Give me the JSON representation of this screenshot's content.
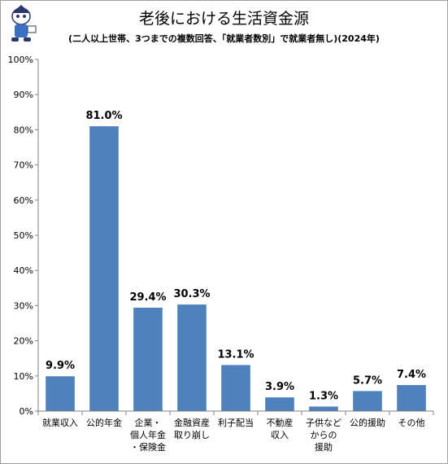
{
  "chart_data": {
    "type": "bar",
    "title": "老後における生活資金源",
    "subtitle": "(二人以上世帯、3つまでの複数回答、「就業者数別」で就業者無し)(2024年)",
    "categories": [
      [
        "就業収入"
      ],
      [
        "公的年金"
      ],
      [
        "企業・",
        "個人年金",
        "・保険金"
      ],
      [
        "金融資産",
        "取り崩し"
      ],
      [
        "利子配当"
      ],
      [
        "不動産",
        "収入"
      ],
      [
        "子供など",
        "からの",
        "援助"
      ],
      [
        "公的援助"
      ],
      [
        "その他"
      ]
    ],
    "values": [
      9.9,
      81.0,
      29.4,
      30.3,
      13.1,
      3.9,
      1.3,
      5.7,
      7.4
    ],
    "value_labels": [
      "9.9%",
      "81.0%",
      "29.4%",
      "30.3%",
      "13.1%",
      "3.9%",
      "1.3%",
      "5.7%",
      "7.4%"
    ],
    "ylim": [
      0,
      100
    ],
    "yticks": [
      "0%",
      "10%",
      "20%",
      "30%",
      "40%",
      "50%",
      "60%",
      "70%",
      "80%",
      "90%",
      "100%"
    ],
    "bar_color": "#4f81bd",
    "grid": false,
    "legend": "none"
  }
}
